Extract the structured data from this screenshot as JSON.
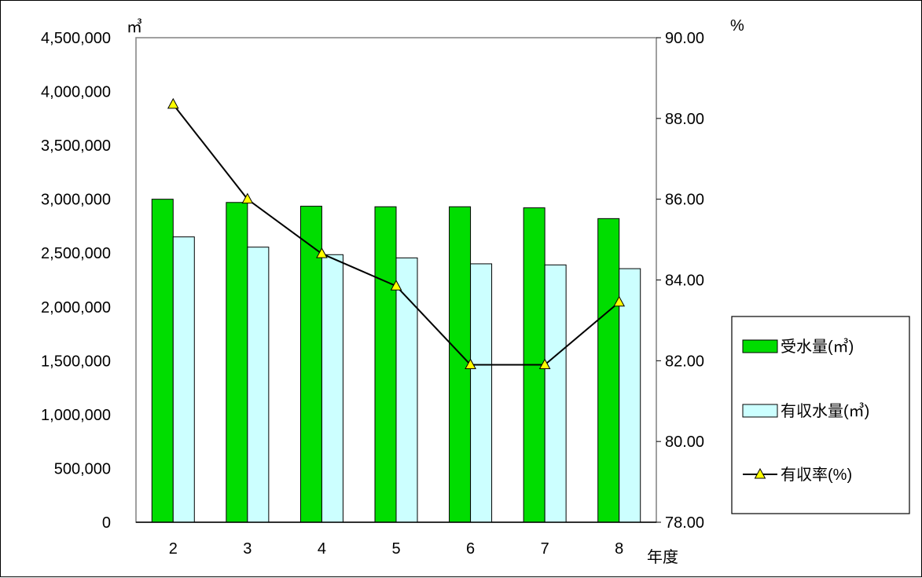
{
  "chart_data": {
    "type": "bar",
    "categories": [
      "2",
      "3",
      "4",
      "5",
      "6",
      "7",
      "8"
    ],
    "xlabel": "年度",
    "left_axis": {
      "unit": "㎥",
      "ylim": [
        0,
        4500000
      ],
      "ticks": [
        "0",
        "500,000",
        "1,000,000",
        "1,500,000",
        "2,000,000",
        "2,500,000",
        "3,000,000",
        "3,500,000",
        "4,000,000",
        "4,500,000"
      ]
    },
    "right_axis": {
      "unit": "%",
      "ylim": [
        78,
        90
      ],
      "ticks": [
        "78.00",
        "80.00",
        "82.00",
        "84.00",
        "86.00",
        "88.00",
        "90.00"
      ]
    },
    "series": [
      {
        "name": "受水量(㎥)",
        "type": "bar",
        "axis": "left",
        "color": "#00dd00",
        "values": [
          3000000,
          2970000,
          2935000,
          2930000,
          2930000,
          2920000,
          2820000
        ]
      },
      {
        "name": "有収水量(㎥)",
        "type": "bar",
        "axis": "left",
        "color": "#ccffff",
        "values": [
          2650000,
          2555000,
          2485000,
          2455000,
          2400000,
          2390000,
          2355000
        ]
      },
      {
        "name": "有収率(%)",
        "type": "line",
        "axis": "right",
        "color": "#000000",
        "marker": "triangle",
        "marker_color": "#ffff00",
        "values": [
          88.35,
          86.0,
          84.65,
          83.85,
          81.9,
          81.9,
          83.45
        ]
      }
    ],
    "legend_position": "right",
    "grid": false
  }
}
